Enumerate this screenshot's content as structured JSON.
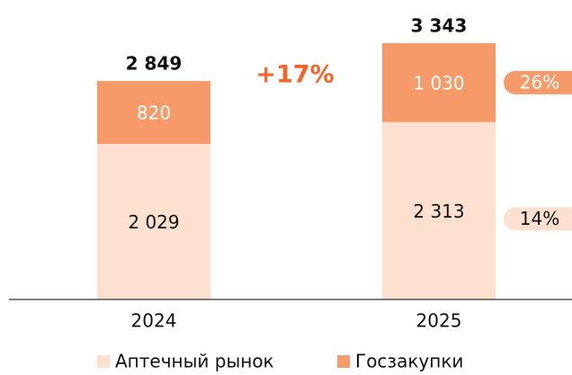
{
  "chart_data": {
    "type": "stacked_bar",
    "categories": [
      "2024",
      "2025"
    ],
    "series": [
      {
        "name": "Аптечный рынок",
        "color": "#fde0d0",
        "values": [
          2029,
          2313
        ],
        "value_labels": [
          "2 029",
          "2 313"
        ],
        "growth": 14,
        "growth_label": "14%"
      },
      {
        "name": "Госзакупки",
        "color": "#f79a6a",
        "values": [
          820,
          1030
        ],
        "value_labels": [
          "820",
          "1 030"
        ],
        "growth": 26,
        "growth_label": "26%"
      }
    ],
    "totals": [
      2849,
      3343
    ],
    "total_labels": [
      "2 849",
      "3 343"
    ],
    "annotation": "+17%",
    "ylim": [
      0,
      3800
    ]
  }
}
